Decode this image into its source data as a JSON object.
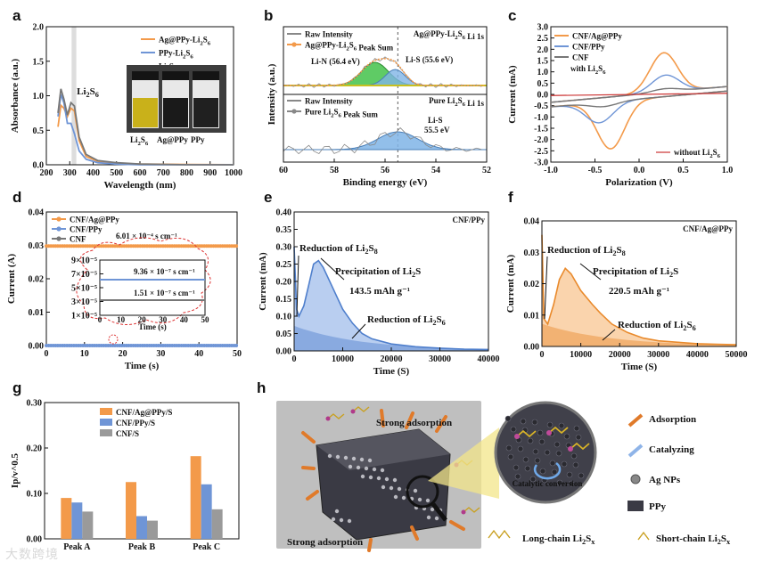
{
  "panel_labels": {
    "a": "a",
    "b": "b",
    "c": "c",
    "d": "d",
    "e": "e",
    "f": "f",
    "g": "g",
    "h": "h"
  },
  "colors": {
    "orange": "#f39a4a",
    "blue": "#6f95d6",
    "gray": "#777777",
    "green": "#36b24a",
    "lightblue": "#7fb4e6"
  },
  "chart_data": [
    {
      "panel": "a",
      "type": "line",
      "xlabel": "Wavelength (nm)",
      "ylabel": "Absorbance (a.u.)",
      "xlim": [
        200,
        1000
      ],
      "ylim": [
        0,
        2.0
      ],
      "xticks": [
        "200",
        "300",
        "400",
        "500",
        "600",
        "700",
        "800",
        "900",
        "1000"
      ],
      "yticks": [
        "0.0",
        "0.5",
        "1.0",
        "1.5",
        "2.0"
      ],
      "peak_label": "Li2S6",
      "photo_labels": [
        "Li2S6",
        "Ag@PPy",
        "PPy"
      ],
      "series": [
        {
          "name": "Ag@PPy-Li2S6",
          "color": "#f39a4a",
          "x": [
            250,
            262,
            275,
            290,
            305,
            320,
            340,
            370,
            420,
            500,
            600,
            800,
            1000
          ],
          "y": [
            0.55,
            0.86,
            0.82,
            0.7,
            0.82,
            0.78,
            0.35,
            0.12,
            0.05,
            0.02,
            0.01,
            0.005,
            0.0
          ]
        },
        {
          "name": "PPy-Li2S6",
          "color": "#6f95d6",
          "x": [
            250,
            262,
            275,
            290,
            305,
            320,
            340,
            370,
            420,
            500,
            600,
            800,
            1000
          ],
          "y": [
            0.7,
            1.02,
            0.9,
            0.6,
            0.6,
            0.45,
            0.2,
            0.08,
            0.03,
            0.01,
            0.0,
            0.0,
            0.0
          ]
        },
        {
          "name": "Li2S6",
          "color": "#777777",
          "x": [
            250,
            262,
            275,
            290,
            305,
            320,
            340,
            370,
            420,
            500,
            600,
            800,
            1000
          ],
          "y": [
            0.75,
            1.1,
            0.95,
            0.72,
            0.9,
            0.85,
            0.4,
            0.15,
            0.06,
            0.03,
            0.01,
            0.0,
            0.0
          ]
        }
      ]
    },
    {
      "panel": "b",
      "type": "line",
      "xlabel": "Binding energy (eV)",
      "ylabel": "Intensity (a.u.)",
      "xlim": [
        60,
        52
      ],
      "xticks": [
        "60",
        "58",
        "56",
        "54",
        "52"
      ],
      "top": {
        "legend": [
          "Raw Intensity",
          "Ag@PPy-Li2S6 Peak Sum"
        ],
        "title": "Ag@PPy-Li2S6 Li 1s",
        "peaks": [
          "Li-N (56.4 eV)",
          "Li-S (55.6 eV)"
        ]
      },
      "bottom": {
        "legend": [
          "Raw Intensity",
          "Pure Li2S6 Peak Sum"
        ],
        "title": "Pure Li2S6 Li 1s",
        "peaks": [
          "Li-S",
          "55.5 eV"
        ]
      }
    },
    {
      "panel": "c",
      "type": "line",
      "xlabel": "Polarization (V)",
      "ylabel": "Current (mA)",
      "xlim": [
        -1.0,
        1.0
      ],
      "ylim": [
        -3.0,
        3.0
      ],
      "xticks": [
        "-1.0",
        "-0.5",
        "0.0",
        "0.5",
        "1.0"
      ],
      "yticks": [
        "-3.0",
        "-2.5",
        "-2.0",
        "-1.5",
        "-1.0",
        "-0.5",
        "0.0",
        "0.5",
        "1.0",
        "1.5",
        "2.0",
        "2.5",
        "3.0"
      ],
      "annotations": [
        "with Li2S6",
        "without Li2S6"
      ],
      "series": [
        {
          "name": "CNF/Ag@PPy",
          "color": "#f39a4a"
        },
        {
          "name": "CNF/PPy",
          "color": "#6f95d6"
        },
        {
          "name": "CNF",
          "color": "#777777"
        }
      ]
    },
    {
      "panel": "d",
      "type": "scatter",
      "xlabel": "Time (s)",
      "ylabel": "Current (A)",
      "xlim": [
        0,
        50
      ],
      "ylim": [
        0,
        0.04
      ],
      "xticks": [
        "0",
        "10",
        "20",
        "30",
        "40",
        "50"
      ],
      "yticks": [
        "0.00",
        "0.01",
        "0.02",
        "0.03",
        "0.04"
      ],
      "series": [
        {
          "name": "CNF/Ag@PPy",
          "color": "#f39a4a",
          "value": 0.0295,
          "conductivity": "6.01 × 10⁻⁴ s cm⁻¹"
        },
        {
          "name": "CNF/PPy",
          "color": "#6f95d6",
          "value": 0.0,
          "conductivity": "9.36 × 10⁻⁷ s cm⁻¹"
        },
        {
          "name": "CNF",
          "color": "#777777",
          "value": 0.0,
          "conductivity": "1.51 × 10⁻⁷ s cm⁻¹"
        }
      ],
      "inset": {
        "ylabel": "Current (A)",
        "xlabel": "Time (s)",
        "xticks": [
          "0",
          "10",
          "20",
          "30",
          "40",
          "50"
        ],
        "yticks": [
          "1×10⁻⁵",
          "3×10⁻⁵",
          "5×10⁻⁵",
          "7×10⁻⁵",
          "9×10⁻⁵"
        ]
      }
    },
    {
      "panel": "e",
      "type": "area",
      "title": "CNF/PPy",
      "xlabel": "Time (S)",
      "ylabel": "Current (mA)",
      "xlim": [
        0,
        40000
      ],
      "ylim": [
        0,
        0.4
      ],
      "xticks": [
        "0",
        "10000",
        "20000",
        "30000",
        "40000"
      ],
      "yticks": [
        "0.00",
        "0.05",
        "0.10",
        "0.15",
        "0.20",
        "0.25",
        "0.30",
        "0.35",
        "0.40"
      ],
      "annotations": [
        "Reduction of Li2S8",
        "Precipitation of Li2S",
        "143.5 mAh g⁻¹",
        "Reduction of Li2S6"
      ],
      "x": [
        0,
        500,
        1000,
        2000,
        3000,
        4000,
        5000,
        6000,
        8000,
        10000,
        12000,
        14000,
        16000,
        20000,
        25000,
        30000,
        35000,
        40000
      ],
      "y": [
        0.3,
        0.12,
        0.1,
        0.13,
        0.19,
        0.25,
        0.26,
        0.24,
        0.18,
        0.12,
        0.08,
        0.05,
        0.035,
        0.02,
        0.012,
        0.008,
        0.005,
        0.004
      ]
    },
    {
      "panel": "f",
      "type": "area",
      "title": "CNF/Ag@PPy",
      "xlabel": "Time (S)",
      "ylabel": "Current (mA)",
      "xlim": [
        0,
        50000
      ],
      "ylim": [
        0,
        0.045
      ],
      "xticks": [
        "0",
        "10000",
        "20000",
        "30000",
        "40000",
        "50000"
      ],
      "yticks": [
        "0.00",
        "0.01",
        "0.02",
        "0.03",
        "0.04"
      ],
      "annotations": [
        "Reduction of Li2S8",
        "Precipitation of Li2S",
        "220.5 mAh g⁻¹",
        "Reduction of Li2S6"
      ],
      "x": [
        0,
        500,
        1500,
        3000,
        4500,
        6000,
        7500,
        10000,
        13000,
        15000,
        18000,
        22000,
        26000,
        30000,
        35000,
        40000,
        45000,
        50000
      ],
      "y": [
        0.04,
        0.01,
        0.008,
        0.015,
        0.024,
        0.028,
        0.026,
        0.02,
        0.015,
        0.012,
        0.008,
        0.005,
        0.003,
        0.002,
        0.0015,
        0.001,
        0.0008,
        0.0006
      ]
    },
    {
      "panel": "g",
      "type": "bar",
      "ylabel": "Ip/v^0.5",
      "ylim": [
        0,
        0.3
      ],
      "yticks": [
        "0.00",
        "0.10",
        "0.20",
        "0.30"
      ],
      "categories": [
        "Peak A",
        "Peak B",
        "Peak C"
      ],
      "series": [
        {
          "name": "CNF/Ag@PPy/S",
          "color": "#f39a4a",
          "values": [
            0.09,
            0.125,
            0.182
          ]
        },
        {
          "name": "CNF/PPy/S",
          "color": "#6f95d6",
          "values": [
            0.08,
            0.05,
            0.12
          ]
        },
        {
          "name": "CNF/S",
          "color": "#9a9a9a",
          "values": [
            0.06,
            0.04,
            0.065
          ]
        }
      ]
    }
  ],
  "schematic": {
    "top_label": "Strong adsorption",
    "bottom_label": "Strong adsorption",
    "inset_label": "Catalytic conversion",
    "legend": [
      "Adsorption",
      "Catalyzing",
      "Ag NPs",
      "PPy"
    ],
    "chain_legend": [
      "Long-chain Li2Sx",
      "Short-chain Li2Sx"
    ]
  },
  "watermark": "大数跨境"
}
